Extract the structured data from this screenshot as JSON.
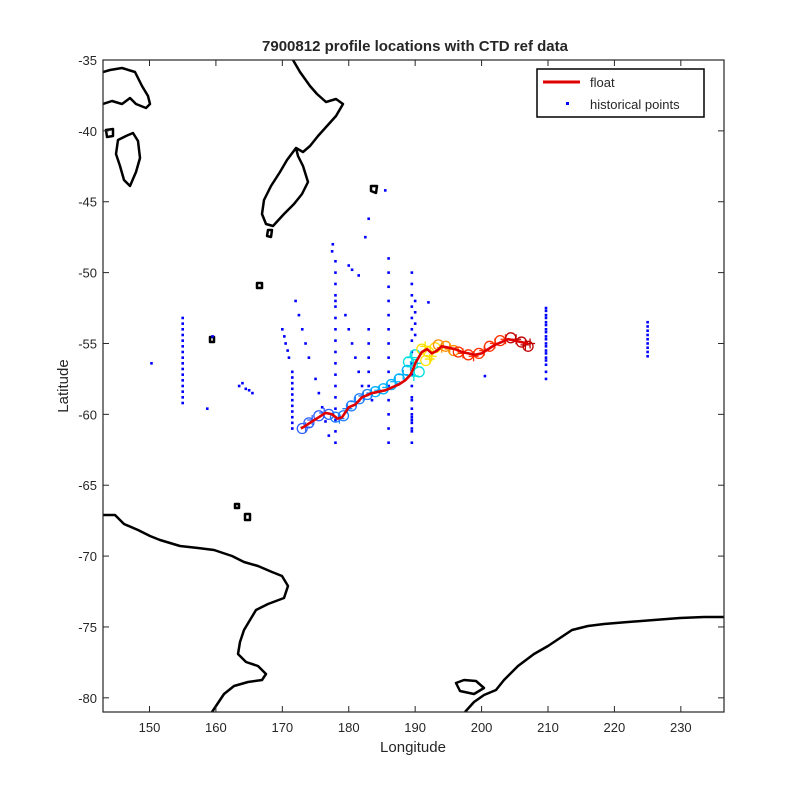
{
  "figure": {
    "title": "7900812 profile locations with CTD ref data",
    "xlabel": "Longitude",
    "ylabel": "Latitude"
  },
  "legend": {
    "float_label": "float",
    "historical_label": "historical points",
    "placement": "top-right"
  },
  "colors": {
    "float_line": "#e00000",
    "historical": "#0000ff",
    "coast": "#000000",
    "text": "#262626"
  },
  "chart_data": {
    "type": "scatter",
    "title": "7900812 profile locations with CTD ref data",
    "xlabel": "Longitude",
    "ylabel": "Latitude",
    "xlim": [
      143,
      236.5
    ],
    "ylim": [
      -81,
      -35
    ],
    "xticks": [
      150,
      160,
      170,
      180,
      190,
      200,
      210,
      220,
      230
    ],
    "yticks": [
      -35,
      -40,
      -45,
      -50,
      -55,
      -60,
      -65,
      -70,
      -75,
      -80
    ],
    "grid": false,
    "legend_position": "top-right",
    "series": [
      {
        "name": "float",
        "kind": "line",
        "x": [
          172.8,
          173.5,
          174.5,
          175.5,
          176.5,
          177.5,
          178.3,
          179,
          180,
          181,
          182,
          182.5,
          183.5,
          184.5,
          185.5,
          186.5,
          187.5,
          188.5,
          189.3,
          189.8,
          190,
          190.5,
          191,
          191.8,
          192.5,
          193.3,
          194,
          195,
          196,
          197,
          198,
          199,
          200,
          201,
          202,
          203,
          204,
          205,
          206,
          207
        ],
        "y": [
          -61,
          -60.8,
          -60.5,
          -60.2,
          -59.9,
          -60,
          -60.3,
          -60.2,
          -59.5,
          -59.3,
          -58.8,
          -58.7,
          -58.5,
          -58.4,
          -58.3,
          -58.1,
          -57.9,
          -57.6,
          -57.2,
          -56.7,
          -56.4,
          -56,
          -55.6,
          -55.4,
          -55.7,
          -55.5,
          -55.2,
          -55.3,
          -55.4,
          -55.6,
          -55.7,
          -55.8,
          -55.7,
          -55.4,
          -55.1,
          -54.9,
          -54.7,
          -54.8,
          -54.9,
          -55
        ],
        "color": "#e00000"
      },
      {
        "name": "historical points",
        "kind": "points",
        "color": "#0000ff",
        "x": [
          150.3,
          155,
          155,
          155,
          155,
          155,
          155,
          155,
          155,
          155,
          155,
          155,
          155,
          155,
          155,
          155,
          155,
          158.7,
          159.5,
          163.5,
          164,
          164.5,
          165,
          165.5,
          170,
          170.3,
          170.5,
          170.8,
          171,
          171.5,
          171.5,
          171.5,
          171.5,
          171.5,
          171.5,
          171.5,
          171.5,
          171.5,
          171.5,
          171.5,
          172,
          172.5,
          173,
          173.5,
          174,
          175,
          175.5,
          176,
          176.5,
          177,
          177.5,
          178,
          178,
          178,
          178,
          178,
          178,
          178,
          178,
          178,
          178,
          178,
          178,
          178,
          178,
          178,
          178,
          178,
          178,
          179.5,
          180,
          180.5,
          181,
          181.5,
          182,
          183,
          183,
          183,
          183,
          183,
          183.5,
          186,
          186,
          186,
          186,
          186,
          186,
          186,
          186,
          186,
          186,
          186,
          186,
          186,
          186,
          189.5,
          189.5,
          189.5,
          189.5,
          189.5,
          189.5,
          189.5,
          189.5,
          189.5,
          189.5,
          189.5,
          189.5,
          189.5,
          189.5,
          189.5,
          189.5,
          189.5,
          189.5,
          189.5,
          189.5,
          189.5,
          190,
          190,
          190,
          190,
          192,
          200.5,
          209.7,
          209.7,
          209.7,
          209.7,
          209.7,
          209.7,
          209.7,
          209.7,
          209.7,
          209.7,
          209.7,
          209.7,
          209.7,
          209.7,
          209.7,
          209.7,
          209.7,
          209.7,
          209.7,
          225,
          225,
          225,
          225,
          225,
          225,
          225,
          225,
          225,
          177.6,
          180,
          180.5,
          181.5,
          182.5,
          183,
          185.5
        ],
        "y": [
          -56.4,
          -53.2,
          -53.6,
          -54,
          -54.4,
          -54.8,
          -55.2,
          -55.6,
          -56,
          -56.4,
          -56.8,
          -57.2,
          -57.6,
          -58,
          -58.4,
          -58.8,
          -59.2,
          -59.6,
          -54.5,
          -58,
          -57.8,
          -58.2,
          -58.3,
          -58.5,
          -54,
          -54.5,
          -55,
          -55.5,
          -56,
          -57,
          -57.4,
          -57.8,
          -58.2,
          -58.6,
          -59,
          -59.4,
          -59.8,
          -60.2,
          -60.6,
          -61,
          -52,
          -53,
          -54,
          -55,
          -56,
          -57.5,
          -58.5,
          -59.5,
          -60.5,
          -61.5,
          -48.5,
          -49.2,
          -50,
          -50.8,
          -51.6,
          -52.4,
          -53.2,
          -54,
          -54.8,
          -55.6,
          -56.4,
          -57.2,
          -58,
          -58.8,
          -59.6,
          -60.4,
          -61.2,
          -62,
          -52,
          -53,
          -54,
          -55,
          -56,
          -57,
          -58,
          -54,
          -55,
          -56,
          -57,
          -58,
          -59,
          -49,
          -50,
          -51,
          -52,
          -53,
          -54,
          -55,
          -56,
          -57,
          -58,
          -59,
          -60,
          -61,
          -62,
          -50,
          -50.8,
          -51.6,
          -52.4,
          -53.2,
          -54,
          -54.8,
          -55.6,
          -56.4,
          -57.2,
          -58,
          -58.8,
          -59.6,
          -60.4,
          -61.2,
          -62,
          -59,
          -60,
          -61,
          -60.2,
          -60.6,
          -52,
          -52.8,
          -53.6,
          -54.4,
          -52.1,
          -57.3,
          -52.5,
          -53,
          -53.5,
          -54,
          -54.5,
          -55,
          -55.5,
          -56,
          -56.5,
          -57,
          -57.5,
          -52.7,
          -53.2,
          -53.7,
          -54.2,
          -54.7,
          -55.2,
          -55.7,
          -56.2,
          -53.5,
          -53.8,
          -54.1,
          -54.4,
          -54.7,
          -55,
          -55.3,
          -55.6,
          -55.9,
          -48,
          -49.5,
          -49.8,
          -50.2,
          -47.5,
          -46.2,
          -44.2
        ]
      }
    ],
    "markers": [
      {
        "color": "#3060ff",
        "x": [
          173,
          173.5,
          174,
          174.5,
          175.5,
          176.3,
          177
        ],
        "y": [
          -61,
          -60.9,
          -60.6,
          -60.4,
          -60.1,
          -59.9,
          -60
        ]
      },
      {
        "color": "#2080ff",
        "x": [
          178,
          178.6,
          179.2,
          179.8,
          180.4,
          181,
          181.6,
          182.2,
          182.8,
          183.4
        ],
        "y": [
          -60.2,
          -60.3,
          -60.1,
          -59.6,
          -59.4,
          -59.1,
          -58.9,
          -58.7,
          -58.6,
          -58.5
        ]
      },
      {
        "color": "#00b0ff",
        "x": [
          184,
          184.6,
          185.2,
          185.8,
          186.4,
          187,
          187.6,
          188.2,
          188.8,
          189.3
        ],
        "y": [
          -58.4,
          -58.3,
          -58.2,
          -58.1,
          -57.9,
          -57.7,
          -57.5,
          -57.2,
          -56.9,
          -56.6
        ]
      },
      {
        "color": "#00e0e0",
        "x": [
          189,
          189.5,
          190,
          190.3,
          190.6,
          189.8
        ],
        "y": [
          -56.3,
          -56,
          -55.8,
          -56.4,
          -57,
          -57.3
        ]
      },
      {
        "color": "#ffe000",
        "x": [
          191,
          191.5,
          192,
          192.5,
          193,
          192.2,
          191.6
        ],
        "y": [
          -55.4,
          -55.2,
          -55.6,
          -55.9,
          -55.3,
          -56.1,
          -56.2
        ]
      },
      {
        "color": "#ff9000",
        "x": [
          193.5,
          194,
          194.6,
          195.2,
          195.8
        ],
        "y": [
          -55.1,
          -55.3,
          -55.2,
          -55.4,
          -55.5
        ]
      },
      {
        "color": "#ff3000",
        "x": [
          196.5,
          197.2,
          198,
          198.8,
          199.6,
          200.4,
          201.2,
          202,
          202.8,
          203.6
        ],
        "y": [
          -55.6,
          -55.7,
          -55.8,
          -55.9,
          -55.7,
          -55.5,
          -55.2,
          -55,
          -54.8,
          -54.7
        ]
      },
      {
        "color": "#c00000",
        "x": [
          204.4,
          205.2,
          206,
          206.6,
          207,
          207.3
        ],
        "y": [
          -54.6,
          -54.7,
          -54.9,
          -55.1,
          -55.2,
          -55
        ]
      }
    ]
  }
}
